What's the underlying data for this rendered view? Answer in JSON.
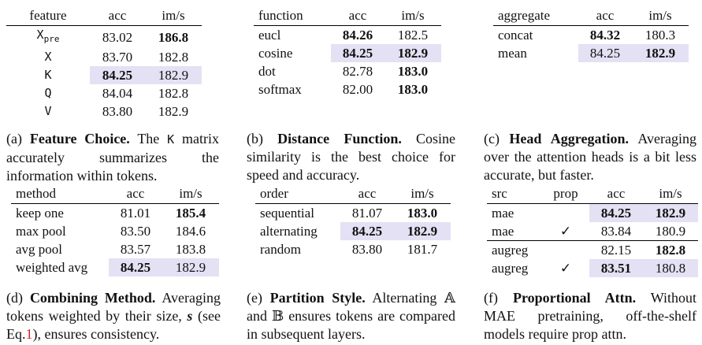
{
  "panels": {
    "a": {
      "headers": [
        "feature",
        "acc",
        "im/s"
      ],
      "rows": [
        {
          "feature": "X",
          "sub": "pre",
          "acc": "83.02",
          "ims": "186.8"
        },
        {
          "feature": "X",
          "acc": "83.70",
          "ims": "182.8"
        },
        {
          "feature": "K",
          "acc": "84.25",
          "ims": "182.9"
        },
        {
          "feature": "Q",
          "acc": "84.04",
          "ims": "182.8"
        },
        {
          "feature": "V",
          "acc": "83.80",
          "ims": "182.9"
        }
      ],
      "caption": {
        "tag": "(a)",
        "title": "Feature Choice.",
        "pre": "The",
        "code": "K",
        "post": "matrix accurately summarizes the information within tokens."
      }
    },
    "b": {
      "headers": [
        "function",
        "acc",
        "im/s"
      ],
      "rows": [
        {
          "name": "eucl",
          "acc": "84.26",
          "ims": "182.5"
        },
        {
          "name": "cosine",
          "acc": "84.25",
          "ims": "182.9"
        },
        {
          "name": "dot",
          "acc": "82.78",
          "ims": "183.0"
        },
        {
          "name": "softmax",
          "acc": "82.00",
          "ims": "183.0"
        }
      ],
      "caption": {
        "tag": "(b)",
        "title": "Distance Function.",
        "text": "Cosine similarity is the best choice for speed and accuracy."
      }
    },
    "c": {
      "headers": [
        "aggregate",
        "acc",
        "im/s"
      ],
      "rows": [
        {
          "name": "concat",
          "acc": "84.32",
          "ims": "180.3"
        },
        {
          "name": "mean",
          "acc": "84.25",
          "ims": "182.9"
        }
      ],
      "caption": {
        "tag": "(c)",
        "title": "Head Aggregation.",
        "text": "Averaging over the attention heads is a bit less accurate, but faster."
      }
    },
    "d": {
      "headers": [
        "method",
        "acc",
        "im/s"
      ],
      "rows": [
        {
          "name": "keep one",
          "acc": "81.01",
          "ims": "185.4"
        },
        {
          "name": "max pool",
          "acc": "83.50",
          "ims": "184.6"
        },
        {
          "name": "avg pool",
          "acc": "83.57",
          "ims": "183.8"
        },
        {
          "name": "weighted avg",
          "acc": "84.25",
          "ims": "182.9"
        }
      ],
      "caption": {
        "tag": "(d)",
        "title": "Combining Method.",
        "pre": "Averaging tokens weighted by their size,",
        "sym": "s",
        "mid": "(see Eq.",
        "ref": "1",
        "post": "), ensures consistency."
      }
    },
    "e": {
      "headers": [
        "order",
        "acc",
        "im/s"
      ],
      "rows": [
        {
          "name": "sequential",
          "acc": "81.07",
          "ims": "183.0"
        },
        {
          "name": "alternating",
          "acc": "84.25",
          "ims": "182.9"
        },
        {
          "name": "random",
          "acc": "83.80",
          "ims": "181.7"
        }
      ],
      "caption": {
        "tag": "(e)",
        "title": "Partition Style.",
        "pre": "Alternating",
        "a": "𝔸",
        "and": "and",
        "b": "𝔹",
        "post": "ensures tokens are compared in subsequent layers."
      }
    },
    "f": {
      "headers": [
        "src",
        "prop",
        "acc",
        "im/s"
      ],
      "rows": [
        {
          "src": "mae",
          "prop": "",
          "acc": "84.25",
          "ims": "182.9"
        },
        {
          "src": "mae",
          "prop": "✓",
          "acc": "83.84",
          "ims": "180.9"
        },
        {
          "src": "augreg",
          "prop": "",
          "acc": "82.15",
          "ims": "182.8"
        },
        {
          "src": "augreg",
          "prop": "✓",
          "acc": "83.51",
          "ims": "180.8"
        }
      ],
      "caption": {
        "tag": "(f)",
        "title": "Proportional Attn.",
        "text": "Without MAE pretraining, off-the-shelf models require prop attn."
      }
    }
  }
}
